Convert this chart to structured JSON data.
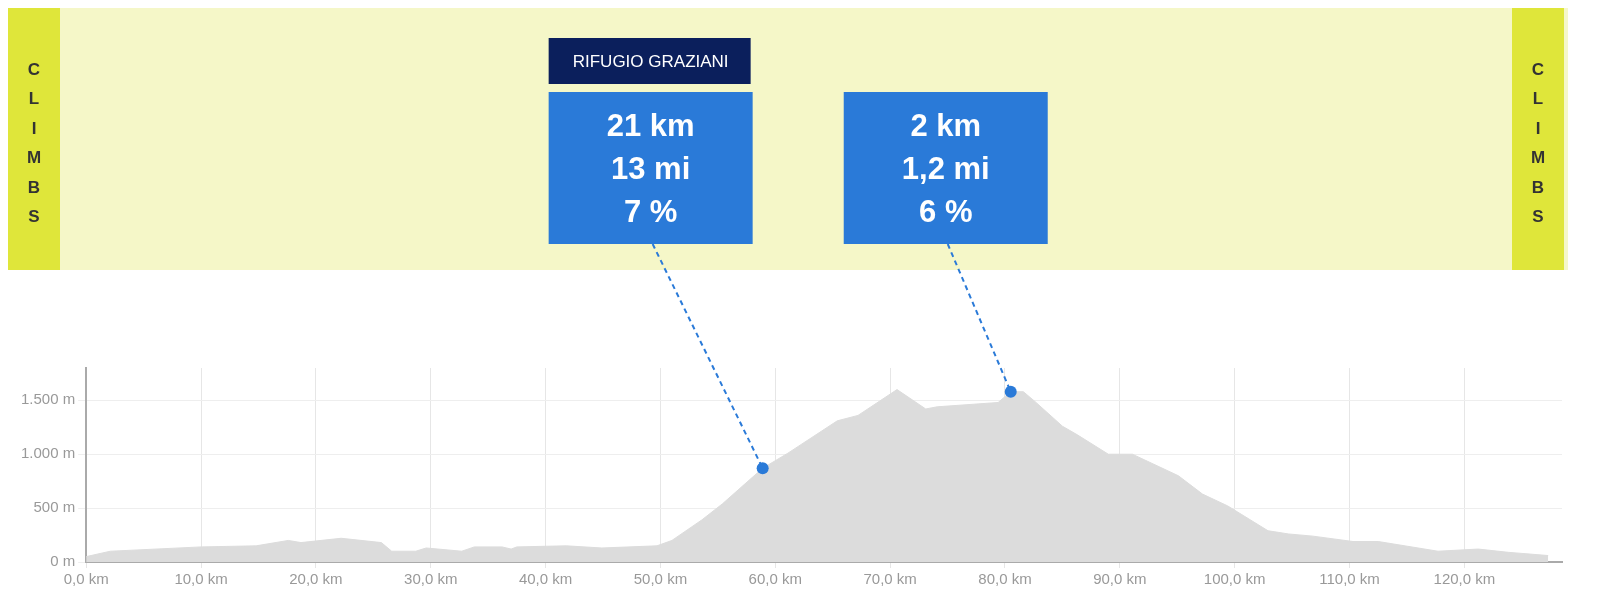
{
  "chart_data": {
    "type": "area",
    "x": [
      0,
      2.1,
      10,
      14.8,
      17.6,
      18.7,
      22.2,
      25.7,
      26.6,
      28.7,
      29.6,
      32.7,
      33.8,
      36.2,
      37,
      37.5,
      41.8,
      44.9,
      49.7,
      51,
      53.6,
      55.4,
      58.9,
      61.1,
      65.4,
      67.2,
      70.6,
      73.1,
      74.1,
      79.4,
      80.5,
      81.6,
      82.6,
      85,
      86.3,
      89,
      91.1,
      95.1,
      97.2,
      99.4,
      102.9,
      104.7,
      106.8,
      110.3,
      112.5,
      117.7,
      121.2,
      123.8,
      127.3
    ],
    "values": [
      50,
      100,
      140,
      150,
      200,
      180,
      220,
      180,
      100,
      100,
      130,
      100,
      140,
      140,
      120,
      140,
      150,
      130,
      150,
      200,
      390,
      540,
      870,
      1010,
      1310,
      1360,
      1600,
      1420,
      1440,
      1480,
      1580,
      1580,
      1490,
      1260,
      1180,
      1000,
      1000,
      800,
      630,
      520,
      290,
      260,
      240,
      190,
      190,
      100,
      120,
      90,
      60
    ],
    "color": "#dcdcdc",
    "xlim": [
      0,
      128.5
    ],
    "ylim": [
      0,
      1800
    ],
    "xticks": [
      {
        "value": 0,
        "label": "0,0 km"
      },
      {
        "value": 10,
        "label": "10,0 km"
      },
      {
        "value": 20,
        "label": "20,0 km"
      },
      {
        "value": 30,
        "label": "30,0 km"
      },
      {
        "value": 40,
        "label": "40,0 km"
      },
      {
        "value": 50,
        "label": "50,0 km"
      },
      {
        "value": 60,
        "label": "60,0 km"
      },
      {
        "value": 70,
        "label": "70,0 km"
      },
      {
        "value": 80,
        "label": "80,0 km"
      },
      {
        "value": 90,
        "label": "90,0 km"
      },
      {
        "value": 100,
        "label": "100,0 km"
      },
      {
        "value": 110,
        "label": "110,0 km"
      },
      {
        "value": 120,
        "label": "120,0 km"
      }
    ],
    "yticks": [
      {
        "value": 0,
        "label": "0 m"
      },
      {
        "value": 500,
        "label": "500 m"
      },
      {
        "value": 1000,
        "label": "1.000 m"
      },
      {
        "value": 1500,
        "label": "1.500 m"
      }
    ],
    "grid": true,
    "legend": false,
    "annotations": [
      "CLIMBS",
      "CLIMBS",
      "RIFUGIO GRAZIANI",
      {
        "text": "21 km\n13 mi\n7 %",
        "x": 58.9,
        "y": 870
      },
      {
        "text": "2 km\n1,2 mi\n6 %",
        "x": 80.5,
        "y": 1580
      }
    ]
  }
}
